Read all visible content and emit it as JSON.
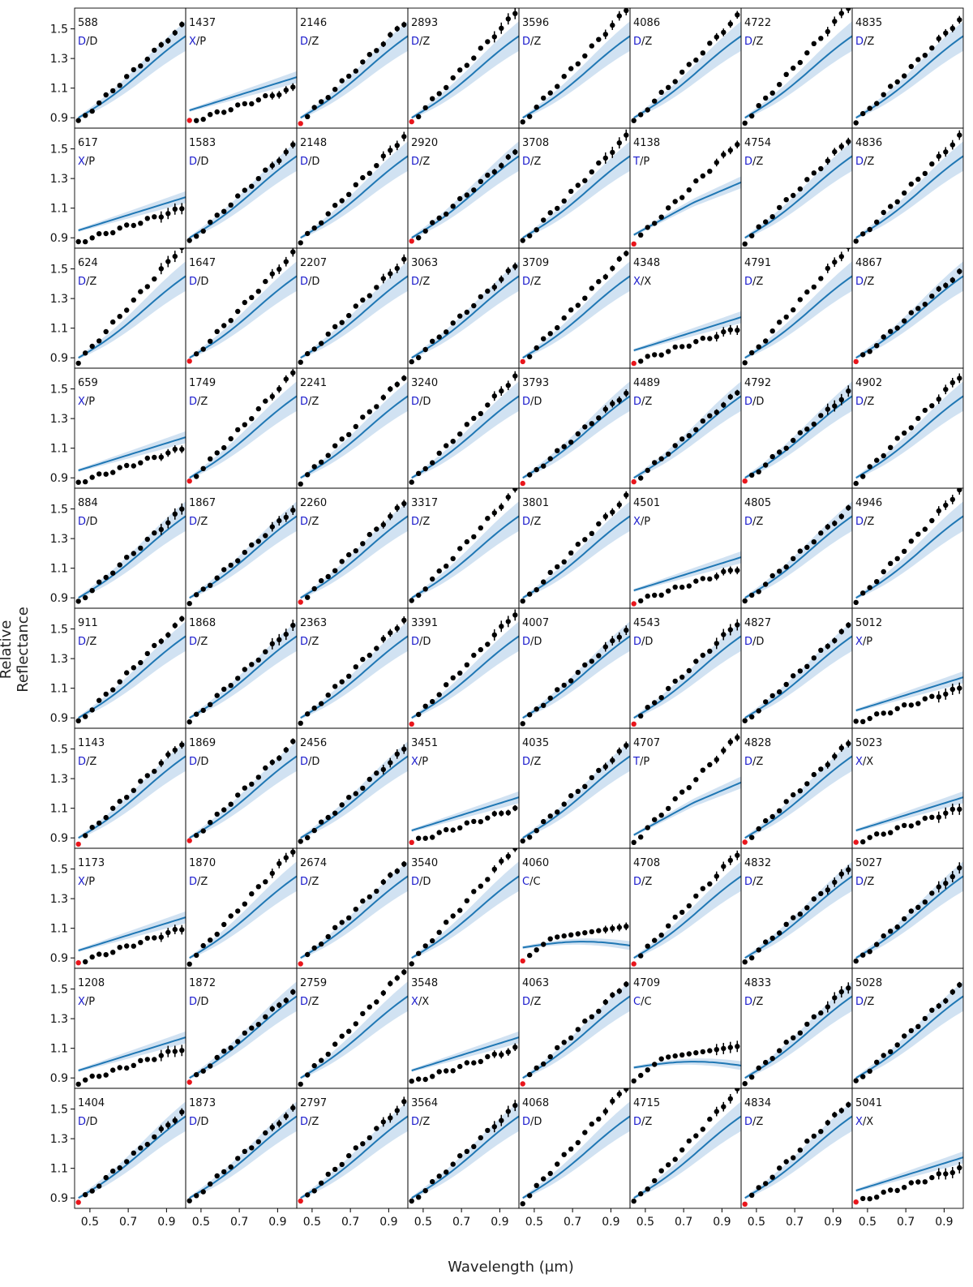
{
  "figure": {
    "ylabel": "Relative Reflectance",
    "xlabel": "Wavelength (μm)"
  },
  "colors": {
    "model_line": "#1f77b4",
    "model_band": "#c6dbef",
    "observed": "#000000",
    "flagged": "#e8151b",
    "class_letter": "#1a1acc"
  },
  "chart_data": {
    "type": "scatter",
    "grid_rows": 10,
    "grid_cols": 8,
    "xlim": [
      0.42,
      1.0
    ],
    "ylim": [
      0.83,
      1.64
    ],
    "xticks": [
      "0.5",
      "0.7",
      "0.9"
    ],
    "yticks": [
      "0.9",
      "1.1",
      "1.3",
      "1.5"
    ],
    "panels": [
      {
        "id": "588",
        "cls": "D",
        "sub": "D"
      },
      {
        "id": "1437",
        "cls": "X",
        "sub": "P"
      },
      {
        "id": "2146",
        "cls": "D",
        "sub": "Z"
      },
      {
        "id": "2893",
        "cls": "D",
        "sub": "Z"
      },
      {
        "id": "3596",
        "cls": "D",
        "sub": "Z"
      },
      {
        "id": "4086",
        "cls": "D",
        "sub": "Z"
      },
      {
        "id": "4722",
        "cls": "D",
        "sub": "Z"
      },
      {
        "id": "4835",
        "cls": "D",
        "sub": "Z"
      },
      {
        "id": "617",
        "cls": "X",
        "sub": "P"
      },
      {
        "id": "1583",
        "cls": "D",
        "sub": "D"
      },
      {
        "id": "2148",
        "cls": "D",
        "sub": "D"
      },
      {
        "id": "2920",
        "cls": "D",
        "sub": "Z"
      },
      {
        "id": "3708",
        "cls": "D",
        "sub": "Z"
      },
      {
        "id": "4138",
        "cls": "T",
        "sub": "P"
      },
      {
        "id": "4754",
        "cls": "D",
        "sub": "Z"
      },
      {
        "id": "4836",
        "cls": "D",
        "sub": "Z"
      },
      {
        "id": "624",
        "cls": "D",
        "sub": "Z"
      },
      {
        "id": "1647",
        "cls": "D",
        "sub": "D"
      },
      {
        "id": "2207",
        "cls": "D",
        "sub": "D"
      },
      {
        "id": "3063",
        "cls": "D",
        "sub": "Z"
      },
      {
        "id": "3709",
        "cls": "D",
        "sub": "Z"
      },
      {
        "id": "4348",
        "cls": "X",
        "sub": "X"
      },
      {
        "id": "4791",
        "cls": "D",
        "sub": "Z"
      },
      {
        "id": "4867",
        "cls": "D",
        "sub": "Z"
      },
      {
        "id": "659",
        "cls": "X",
        "sub": "P"
      },
      {
        "id": "1749",
        "cls": "D",
        "sub": "Z"
      },
      {
        "id": "2241",
        "cls": "D",
        "sub": "Z"
      },
      {
        "id": "3240",
        "cls": "D",
        "sub": "D"
      },
      {
        "id": "3793",
        "cls": "D",
        "sub": "D"
      },
      {
        "id": "4489",
        "cls": "D",
        "sub": "Z"
      },
      {
        "id": "4792",
        "cls": "D",
        "sub": "D"
      },
      {
        "id": "4902",
        "cls": "D",
        "sub": "Z"
      },
      {
        "id": "884",
        "cls": "D",
        "sub": "D"
      },
      {
        "id": "1867",
        "cls": "D",
        "sub": "Z"
      },
      {
        "id": "2260",
        "cls": "D",
        "sub": "Z"
      },
      {
        "id": "3317",
        "cls": "D",
        "sub": "Z"
      },
      {
        "id": "3801",
        "cls": "D",
        "sub": "Z"
      },
      {
        "id": "4501",
        "cls": "X",
        "sub": "P"
      },
      {
        "id": "4805",
        "cls": "D",
        "sub": "Z"
      },
      {
        "id": "4946",
        "cls": "D",
        "sub": "Z"
      },
      {
        "id": "911",
        "cls": "D",
        "sub": "Z"
      },
      {
        "id": "1868",
        "cls": "D",
        "sub": "Z"
      },
      {
        "id": "2363",
        "cls": "D",
        "sub": "Z"
      },
      {
        "id": "3391",
        "cls": "D",
        "sub": "D"
      },
      {
        "id": "4007",
        "cls": "D",
        "sub": "D"
      },
      {
        "id": "4543",
        "cls": "D",
        "sub": "D"
      },
      {
        "id": "4827",
        "cls": "D",
        "sub": "D"
      },
      {
        "id": "5012",
        "cls": "X",
        "sub": "P"
      },
      {
        "id": "1143",
        "cls": "D",
        "sub": "Z"
      },
      {
        "id": "1869",
        "cls": "D",
        "sub": "D"
      },
      {
        "id": "2456",
        "cls": "D",
        "sub": "D"
      },
      {
        "id": "3451",
        "cls": "X",
        "sub": "P"
      },
      {
        "id": "4035",
        "cls": "D",
        "sub": "Z"
      },
      {
        "id": "4707",
        "cls": "T",
        "sub": "P"
      },
      {
        "id": "4828",
        "cls": "D",
        "sub": "Z"
      },
      {
        "id": "5023",
        "cls": "X",
        "sub": "X"
      },
      {
        "id": "1173",
        "cls": "X",
        "sub": "P"
      },
      {
        "id": "1870",
        "cls": "D",
        "sub": "Z"
      },
      {
        "id": "2674",
        "cls": "D",
        "sub": "Z"
      },
      {
        "id": "3540",
        "cls": "D",
        "sub": "D"
      },
      {
        "id": "4060",
        "cls": "C",
        "sub": "C"
      },
      {
        "id": "4708",
        "cls": "D",
        "sub": "Z"
      },
      {
        "id": "4832",
        "cls": "D",
        "sub": "Z"
      },
      {
        "id": "5027",
        "cls": "D",
        "sub": "Z"
      },
      {
        "id": "1208",
        "cls": "X",
        "sub": "P"
      },
      {
        "id": "1872",
        "cls": "D",
        "sub": "D"
      },
      {
        "id": "2759",
        "cls": "D",
        "sub": "Z"
      },
      {
        "id": "3548",
        "cls": "X",
        "sub": "X"
      },
      {
        "id": "4063",
        "cls": "D",
        "sub": "Z"
      },
      {
        "id": "4709",
        "cls": "C",
        "sub": "C"
      },
      {
        "id": "4833",
        "cls": "D",
        "sub": "Z"
      },
      {
        "id": "5028",
        "cls": "D",
        "sub": "Z"
      },
      {
        "id": "1404",
        "cls": "D",
        "sub": "D"
      },
      {
        "id": "1873",
        "cls": "D",
        "sub": "D"
      },
      {
        "id": "2797",
        "cls": "D",
        "sub": "Z"
      },
      {
        "id": "3564",
        "cls": "D",
        "sub": "Z"
      },
      {
        "id": "4068",
        "cls": "D",
        "sub": "D"
      },
      {
        "id": "4715",
        "cls": "D",
        "sub": "Z"
      },
      {
        "id": "4834",
        "cls": "D",
        "sub": "Z"
      },
      {
        "id": "5041",
        "cls": "X",
        "sub": "X"
      }
    ]
  }
}
